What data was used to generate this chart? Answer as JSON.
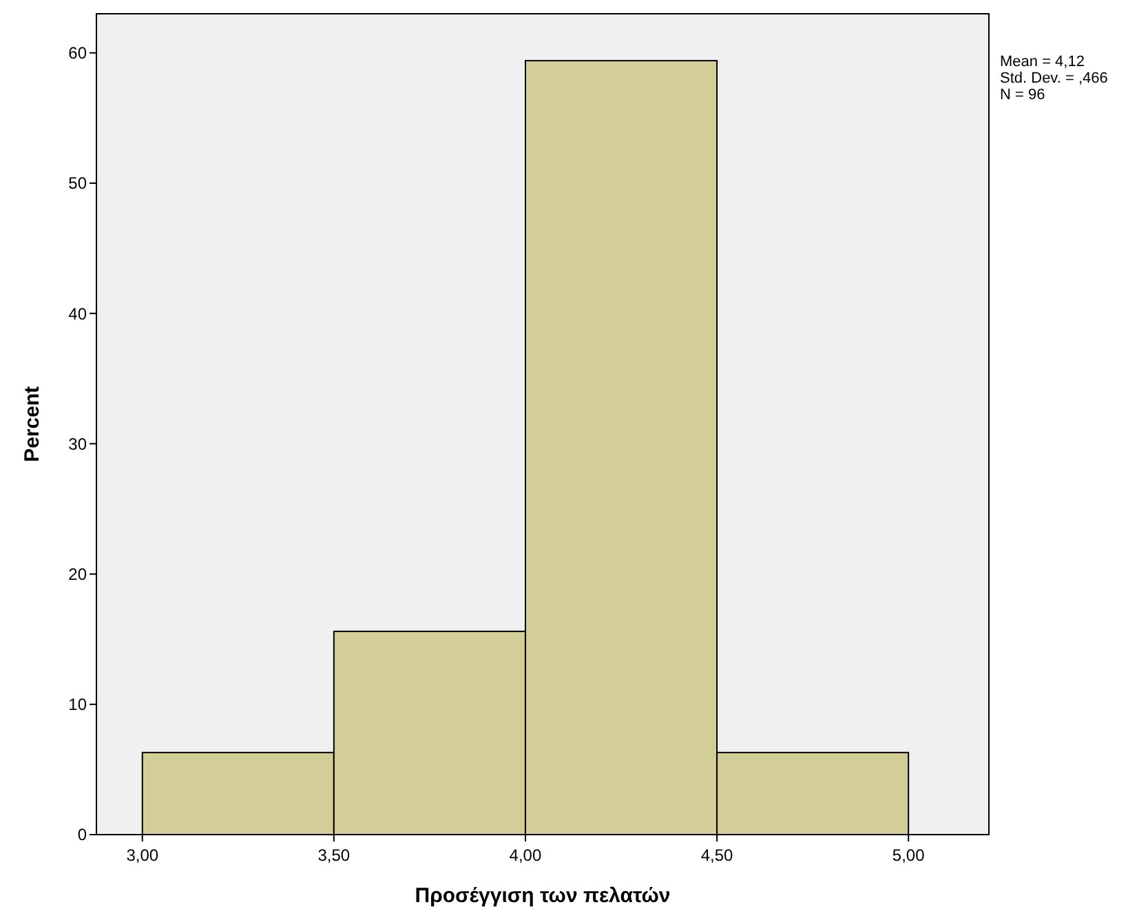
{
  "chart_data": {
    "type": "histogram",
    "xlabel": "Προσέγγιση των πελατών",
    "ylabel": "Percent",
    "bins": [
      3,
      3.5,
      4,
      4.5,
      5
    ],
    "values": [
      6.3,
      15.6,
      59.4,
      6.3
    ],
    "color": "#d3ce97",
    "xlim": [
      2.88,
      5.21
    ],
    "xticks": [
      {
        "value": 3,
        "label": "3,00"
      },
      {
        "value": 3.5,
        "label": "3,50"
      },
      {
        "value": 4,
        "label": "4,00"
      },
      {
        "value": 4.5,
        "label": "4,50"
      },
      {
        "value": 5,
        "label": "5,00"
      }
    ],
    "ylim": [
      0,
      63
    ],
    "yticks": [
      0,
      10,
      20,
      30,
      40,
      50,
      60
    ],
    "grid": false,
    "annotations": [
      "Mean = 4,12",
      "Std. Dev. = ,466",
      "N = 96"
    ]
  }
}
